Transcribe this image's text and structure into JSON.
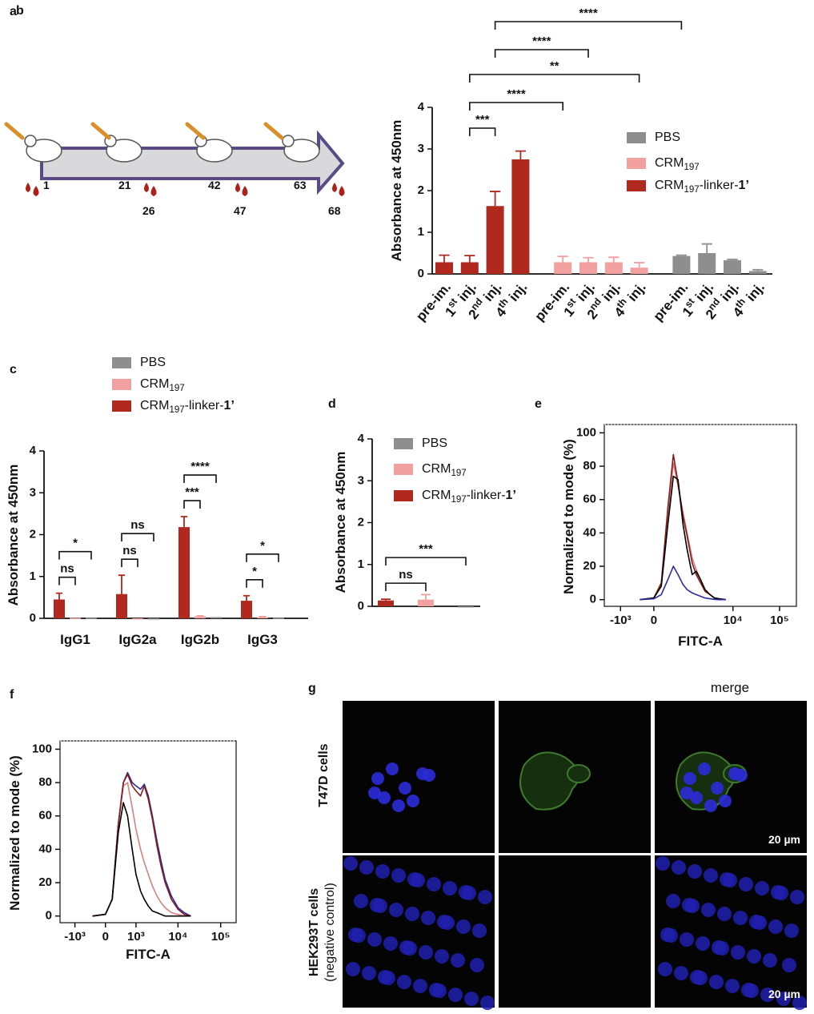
{
  "chart_data": [
    {
      "label": "b",
      "type": "bar",
      "ylabel": "Absorbance at 450nm",
      "categories": [
        "pre-im.",
        "1st inj.",
        "2nd inj.",
        "4th inj.",
        "pre-im.",
        "1st inj.",
        "2nd inj.",
        "4th inj.",
        "pre-im.",
        "1st inj.",
        "2nd inj.",
        "4th inj."
      ],
      "ylim": [
        0,
        4
      ],
      "yticks": [
        0,
        1,
        2,
        3,
        4
      ],
      "series": [
        {
          "name": "PBS",
          "color": "#8e8e8e",
          "values": [
            null,
            null,
            null,
            null,
            null,
            null,
            null,
            null,
            0.43,
            0.5,
            0.33,
            0.07
          ],
          "errors": [
            null,
            null,
            null,
            null,
            null,
            null,
            null,
            null,
            0.02,
            0.22,
            0.02,
            0.03
          ]
        },
        {
          "name": "CRM197",
          "color": "#f2a0a0",
          "values": [
            null,
            null,
            null,
            null,
            0.28,
            0.28,
            0.28,
            0.15,
            null,
            null,
            null,
            null
          ],
          "errors": [
            null,
            null,
            null,
            null,
            0.14,
            0.11,
            0.12,
            0.12,
            null,
            null,
            null,
            null
          ]
        },
        {
          "name": "CRM197-linker-1’",
          "color": "#b0281e",
          "values": [
            0.28,
            0.28,
            1.63,
            2.75,
            null,
            null,
            null,
            null,
            null,
            null,
            null,
            null
          ],
          "errors": [
            0.17,
            0.16,
            0.35,
            0.2,
            null,
            null,
            null,
            null,
            null,
            null,
            null,
            null
          ]
        }
      ],
      "comparisons": [
        {
          "from": 1,
          "to": 2,
          "label": "***"
        },
        {
          "from": 1,
          "to": 4,
          "label": "****"
        },
        {
          "from": 1,
          "to": 7,
          "label": "**"
        },
        {
          "from": 2,
          "to": 5,
          "label": "****"
        },
        {
          "from": 2,
          "to": 8,
          "label": "****"
        }
      ]
    },
    {
      "label": "c",
      "type": "bar",
      "ylabel": "Absorbance at 450nm",
      "categories": [
        "IgG1",
        "IgG2a",
        "IgG2b",
        "IgG3"
      ],
      "ylim": [
        0,
        4
      ],
      "yticks": [
        0,
        1,
        2,
        3,
        4
      ],
      "series": [
        {
          "name": "PBS",
          "color": "#8e8e8e",
          "values": [
            0.01,
            0,
            0.03,
            0.01
          ],
          "errors": [
            0,
            0,
            0,
            0
          ]
        },
        {
          "name": "CRM197",
          "color": "#f2a0a0",
          "values": [
            0.01,
            0,
            0.05,
            0.03
          ],
          "errors": [
            0,
            0,
            0.01,
            0.01
          ]
        },
        {
          "name": "CRM197-linker-1’",
          "color": "#b0281e",
          "values": [
            0.45,
            0.58,
            2.18,
            0.42
          ],
          "errors": [
            0.15,
            0.45,
            0.25,
            0.12
          ]
        }
      ],
      "comparisons": [
        {
          "category": 0,
          "from": 2,
          "to": 1,
          "label": "ns"
        },
        {
          "category": 0,
          "from": 2,
          "to": 0,
          "label": "*"
        },
        {
          "category": 1,
          "from": 2,
          "to": 1,
          "label": "ns"
        },
        {
          "category": 1,
          "from": 2,
          "to": 0,
          "label": "ns"
        },
        {
          "category": 2,
          "from": 2,
          "to": 1,
          "label": "***"
        },
        {
          "category": 2,
          "from": 2,
          "to": 0,
          "label": "****"
        },
        {
          "category": 3,
          "from": 2,
          "to": 1,
          "label": "*"
        },
        {
          "category": 3,
          "from": 2,
          "to": 0,
          "label": "*"
        }
      ]
    },
    {
      "label": "d",
      "type": "bar",
      "ylabel": "Absorbance at 450nm",
      "categories": [
        null
      ],
      "ylim": [
        0,
        4
      ],
      "yticks": [
        0,
        1,
        2,
        3,
        4
      ],
      "series": [
        {
          "name": "PBS",
          "color": "#8e8e8e",
          "values": [
            0
          ],
          "errors": [
            0
          ]
        },
        {
          "name": "CRM197",
          "color": "#f2a0a0",
          "values": [
            0.16
          ],
          "errors": [
            0.12
          ]
        },
        {
          "name": "CRM197-linker-1’",
          "color": "#b0281e",
          "values": [
            0.14
          ],
          "errors": [
            0.03
          ]
        }
      ],
      "comparisons": [
        {
          "category": 0,
          "from": 2,
          "to": 1,
          "label": "ns"
        },
        {
          "category": 0,
          "from": 2,
          "to": 0,
          "label": "***"
        }
      ]
    },
    {
      "label": "e",
      "type": "line",
      "xscale": "biexponential",
      "xlabel": "FITC-A",
      "ylabel": "Normalized to mode (%)",
      "x": [
        -300,
        0,
        150,
        300,
        450,
        600,
        800,
        1000,
        1300,
        1600,
        2000,
        2500,
        3200,
        4000,
        5000,
        7000
      ],
      "xlim": [
        -2300,
        230000
      ],
      "xticks": [
        {
          "value": -1000,
          "label": "-10³"
        },
        0,
        {
          "value": 10000,
          "label": "10⁴"
        },
        {
          "value": 100000,
          "label": "10⁵"
        }
      ],
      "ylim": [
        -4,
        105
      ],
      "yticks": [
        0,
        20,
        40,
        60,
        80,
        100
      ],
      "series": [
        {
          "color": "#d98080",
          "values": [
            0,
            1,
            9,
            50,
            82,
            68,
            52,
            40,
            25,
            18,
            12,
            6,
            3,
            1,
            0.5,
            0
          ]
        },
        {
          "color": "#8b1a1a",
          "values": [
            0,
            1,
            10,
            55,
            87,
            70,
            50,
            38,
            22,
            15,
            10,
            5,
            3,
            1,
            0.5,
            0
          ]
        },
        {
          "color": "#000000",
          "values": [
            0,
            1,
            8,
            45,
            74,
            72,
            45,
            30,
            15,
            17,
            12,
            6,
            3,
            1,
            0.5,
            0
          ]
        },
        {
          "color": "#2b2b9c",
          "values": [
            0,
            0.5,
            3,
            12,
            20,
            15,
            9,
            6,
            4,
            3,
            2,
            1,
            0.5,
            0.2,
            0,
            0
          ]
        }
      ]
    },
    {
      "label": "f",
      "type": "line",
      "xscale": "biexponential",
      "xlabel": "FITC-A",
      "ylabel": "Normalized to mode (%)",
      "x": [
        -300,
        0,
        150,
        300,
        450,
        600,
        800,
        1000,
        1300,
        1600,
        2000,
        2500,
        3200,
        4000,
        5000,
        7000,
        10000,
        14000,
        20000
      ],
      "xlim": [
        -2300,
        230000
      ],
      "xticks": [
        {
          "value": -1000,
          "label": "-10³"
        },
        0,
        {
          "value": 1000,
          "label": "10³"
        },
        {
          "value": 10000,
          "label": "10⁴"
        },
        {
          "value": 100000,
          "label": "10⁵"
        }
      ],
      "ylim": [
        -4,
        105
      ],
      "yticks": [
        0,
        20,
        40,
        60,
        80,
        100
      ],
      "series": [
        {
          "color": "#d98080",
          "values": [
            0,
            1,
            10,
            55,
            78,
            80,
            65,
            52,
            40,
            32,
            25,
            18,
            12,
            8,
            5,
            2,
            1,
            0,
            0
          ]
        },
        {
          "color": "#2b2b9c",
          "values": [
            0,
            1,
            10,
            55,
            80,
            86,
            80,
            78,
            76,
            79,
            72,
            60,
            45,
            33,
            22,
            12,
            5,
            2,
            0
          ]
        },
        {
          "color": "#8b1a1a",
          "values": [
            0,
            1,
            10,
            55,
            80,
            85,
            78,
            75,
            72,
            78,
            70,
            58,
            42,
            30,
            20,
            10,
            4,
            1,
            0
          ]
        },
        {
          "color": "#000000",
          "values": [
            0,
            1,
            10,
            50,
            68,
            60,
            40,
            25,
            15,
            10,
            6,
            3,
            2,
            1,
            0,
            0,
            0,
            0,
            0
          ]
        }
      ]
    }
  ],
  "timeline": {
    "label": "a",
    "injection_days": [
      "1",
      "21",
      "42",
      "63"
    ],
    "bleed_days": [
      "26",
      "47",
      "68"
    ]
  },
  "micrographs": {
    "label": "g",
    "merge_title": "merge",
    "rows": [
      {
        "name": "T47D cells",
        "scale_bar": "20 µm"
      },
      {
        "name": "HEK293T cells",
        "note": "(negative control)",
        "scale_bar": "20 µm"
      }
    ]
  }
}
